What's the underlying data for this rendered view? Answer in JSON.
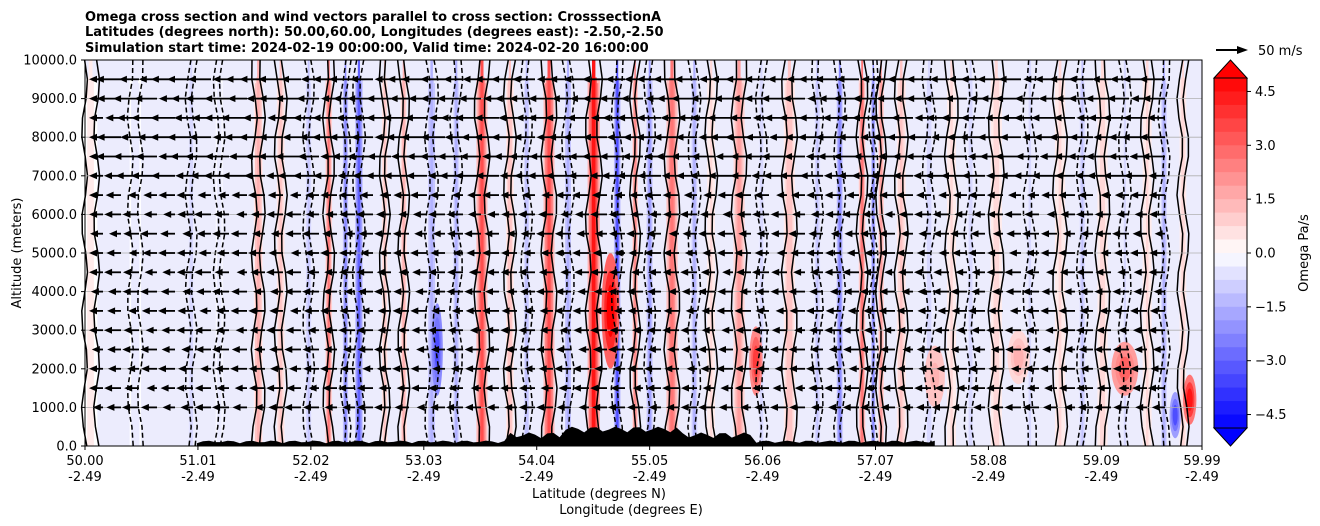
{
  "chart_data": {
    "type": "heatmap",
    "title_lines": [
      "Omega cross section and wind vectors parallel to cross section: CrosssectionA",
      "Latitudes (degrees north): 50.00,60.00, Longitudes (degrees east): -2.50,-2.50",
      "Simulation start time: 2024-02-19 00:00:00, Valid time: 2024-02-20 16:00:00"
    ],
    "ylabel": "Altitude (meters)",
    "xlabel_lines": [
      "Latitude (degrees N)",
      "Longitude (degrees E)"
    ],
    "ylim": [
      0,
      10000
    ],
    "y_ticks": [
      "0.0",
      "1000.0",
      "2000.0",
      "3000.0",
      "4000.0",
      "5000.0",
      "6000.0",
      "7000.0",
      "8000.0",
      "9000.0",
      "10000.0"
    ],
    "x_ticks": [
      {
        "lat": "50.00",
        "lon": "-2.49"
      },
      {
        "lat": "51.01",
        "lon": "-2.49"
      },
      {
        "lat": "52.02",
        "lon": "-2.49"
      },
      {
        "lat": "53.03",
        "lon": "-2.49"
      },
      {
        "lat": "54.04",
        "lon": "-2.49"
      },
      {
        "lat": "55.05",
        "lon": "-2.49"
      },
      {
        "lat": "56.06",
        "lon": "-2.49"
      },
      {
        "lat": "57.07",
        "lon": "-2.49"
      },
      {
        "lat": "58.08",
        "lon": "-2.49"
      },
      {
        "lat": "59.09",
        "lon": "-2.49"
      },
      {
        "lat": "59.99",
        "lon": "-2.49"
      }
    ],
    "grid": "horizontal",
    "colorbar": {
      "label": "Omega Pa/s",
      "range": [
        -5.25,
        5.25
      ],
      "step": 0.375,
      "tick_values": [
        4.5,
        3.0,
        1.5,
        0.0,
        -1.5,
        -3.0,
        -4.5
      ],
      "tick_labels": [
        "4.5",
        "3.0",
        "1.5",
        "0.0",
        "−1.5",
        "−3.0",
        "−4.5"
      ],
      "colors": {
        "negative": "#0000ff",
        "zero": "#ffffff",
        "positive": "#ff0000"
      }
    },
    "quiver_key": {
      "label": "50 m/s",
      "speed": 50
    },
    "omega_bands": [
      {
        "lat": 50.05,
        "width": 0.12,
        "value": 0.3
      },
      {
        "lat": 50.45,
        "width": 0.1,
        "value": -0.4
      },
      {
        "lat": 50.95,
        "width": 0.06,
        "value": -0.8
      },
      {
        "lat": 51.2,
        "width": 0.06,
        "value": -0.4
      },
      {
        "lat": 51.55,
        "width": 0.08,
        "value": 1.6
      },
      {
        "lat": 51.75,
        "width": 0.07,
        "value": 1.0
      },
      {
        "lat": 52.0,
        "width": 0.06,
        "value": -1.0
      },
      {
        "lat": 52.18,
        "width": 0.06,
        "value": 2.5
      },
      {
        "lat": 52.33,
        "width": 0.05,
        "value": -2.2
      },
      {
        "lat": 52.45,
        "width": 0.07,
        "value": -3.0
      },
      {
        "lat": 52.68,
        "width": 0.05,
        "value": 1.0
      },
      {
        "lat": 52.85,
        "width": 0.06,
        "value": 1.4
      },
      {
        "lat": 53.1,
        "width": 0.08,
        "value": -1.6
      },
      {
        "lat": 53.32,
        "width": 0.07,
        "value": -1.5
      },
      {
        "lat": 53.55,
        "width": 0.1,
        "value": 3.2
      },
      {
        "lat": 53.8,
        "width": 0.07,
        "value": 1.2
      },
      {
        "lat": 53.95,
        "width": 0.06,
        "value": -1.3
      },
      {
        "lat": 54.15,
        "width": 0.1,
        "value": 3.5
      },
      {
        "lat": 54.32,
        "width": 0.07,
        "value": -1.6
      },
      {
        "lat": 54.55,
        "width": 0.11,
        "value": 4.4
      },
      {
        "lat": 54.76,
        "width": 0.06,
        "value": -3.4
      },
      {
        "lat": 54.92,
        "width": 0.05,
        "value": 2.4
      },
      {
        "lat": 55.05,
        "width": 0.06,
        "value": -2.0
      },
      {
        "lat": 55.25,
        "width": 0.1,
        "value": 2.8
      },
      {
        "lat": 55.45,
        "width": 0.07,
        "value": -1.4
      },
      {
        "lat": 55.6,
        "width": 0.07,
        "value": 0.6
      },
      {
        "lat": 55.85,
        "width": 0.1,
        "value": 1.8
      },
      {
        "lat": 56.05,
        "width": 0.06,
        "value": -0.8
      },
      {
        "lat": 56.3,
        "width": 0.1,
        "value": 1.3
      },
      {
        "lat": 56.55,
        "width": 0.06,
        "value": -1.0
      },
      {
        "lat": 56.75,
        "width": 0.06,
        "value": -2.4
      },
      {
        "lat": 56.95,
        "width": 0.06,
        "value": 2.6
      },
      {
        "lat": 57.05,
        "width": 0.04,
        "value": -2.2
      },
      {
        "lat": 57.12,
        "width": 0.05,
        "value": 2.0
      },
      {
        "lat": 57.3,
        "width": 0.08,
        "value": 1.0
      },
      {
        "lat": 57.55,
        "width": 0.08,
        "value": -0.9
      },
      {
        "lat": 57.75,
        "width": 0.08,
        "value": 0.7
      },
      {
        "lat": 57.92,
        "width": 0.07,
        "value": -0.8
      },
      {
        "lat": 58.15,
        "width": 0.1,
        "value": 0.9
      },
      {
        "lat": 58.45,
        "width": 0.08,
        "value": -0.6
      },
      {
        "lat": 58.72,
        "width": 0.09,
        "value": 0.6
      },
      {
        "lat": 58.92,
        "width": 0.06,
        "value": -1.0
      },
      {
        "lat": 59.1,
        "width": 0.09,
        "value": 0.8
      },
      {
        "lat": 59.3,
        "width": 0.07,
        "value": -0.6
      },
      {
        "lat": 59.5,
        "width": 0.08,
        "value": 0.7
      },
      {
        "lat": 59.65,
        "width": 0.06,
        "value": -1.6
      },
      {
        "lat": 59.82,
        "width": 0.06,
        "value": 0.9
      }
    ],
    "omega_blobs": [
      {
        "lat": 59.88,
        "alt": 1200,
        "rx": 0.06,
        "ry": 650,
        "value": 4.6
      },
      {
        "lat": 59.75,
        "alt": 800,
        "rx": 0.05,
        "ry": 600,
        "value": -3.2
      },
      {
        "lat": 59.3,
        "alt": 2000,
        "rx": 0.12,
        "ry": 700,
        "value": 2.9
      },
      {
        "lat": 58.35,
        "alt": 2300,
        "rx": 0.1,
        "ry": 700,
        "value": 1.5
      },
      {
        "lat": 57.6,
        "alt": 1800,
        "rx": 0.09,
        "ry": 800,
        "value": 1.6
      },
      {
        "lat": 56.0,
        "alt": 2200,
        "rx": 0.06,
        "ry": 900,
        "value": 3.6
      },
      {
        "lat": 54.7,
        "alt": 3500,
        "rx": 0.08,
        "ry": 1500,
        "value": 5.0
      },
      {
        "lat": 53.15,
        "alt": 2500,
        "rx": 0.05,
        "ry": 1200,
        "value": -3.5
      }
    ],
    "wind_rows_altitudes": [
      1000,
      1500,
      2000,
      2500,
      3000,
      3500,
      4000,
      4500,
      5000,
      5500,
      6000,
      6500,
      7000,
      7500,
      8000,
      8500,
      9000,
      9500
    ]
  }
}
